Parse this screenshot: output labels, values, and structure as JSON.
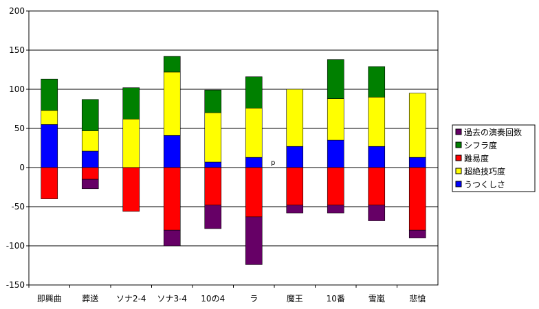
{
  "chart_data": {
    "type": "bar",
    "stacked": true,
    "title": "",
    "xlabel": "",
    "ylabel": "",
    "ylim": [
      -150,
      200
    ],
    "yticks": [
      -150,
      -100,
      -50,
      0,
      50,
      100,
      150,
      200
    ],
    "grid": true,
    "legend_position": "right",
    "categories": [
      "即興曲",
      "葬送",
      "ソナ2-4",
      "ソナ3-4",
      "10の4",
      "ラ",
      "魔王",
      "10番",
      "雪嵐",
      "悲愴"
    ],
    "series": [
      {
        "name": "うつくしさ",
        "color": "#0000ff",
        "values": [
          55,
          21,
          0,
          41,
          7,
          13,
          27,
          35,
          27,
          13
        ]
      },
      {
        "name": "超絶技巧度",
        "color": "#ffff00",
        "values": [
          18,
          26,
          62,
          81,
          63,
          63,
          73,
          53,
          63,
          82
        ]
      },
      {
        "name": "シフラ度",
        "color": "#008000",
        "values": [
          40,
          40,
          40,
          20,
          29,
          40,
          0,
          50,
          39,
          0
        ]
      },
      {
        "name": "難易度",
        "color": "#ff0000",
        "values": [
          -40,
          -15,
          -56,
          -80,
          -48,
          -63,
          -48,
          -48,
          -48,
          -80
        ]
      },
      {
        "name": "過去の演奏回数",
        "color": "#660066",
        "values": [
          0,
          -12,
          0,
          -20,
          -30,
          -61,
          -10,
          -10,
          -20,
          -10
        ]
      }
    ],
    "legend_order": [
      "過去の演奏回数",
      "シフラ度",
      "難易度",
      "超絶技巧度",
      "うつくしさ"
    ],
    "annotation": "p"
  }
}
